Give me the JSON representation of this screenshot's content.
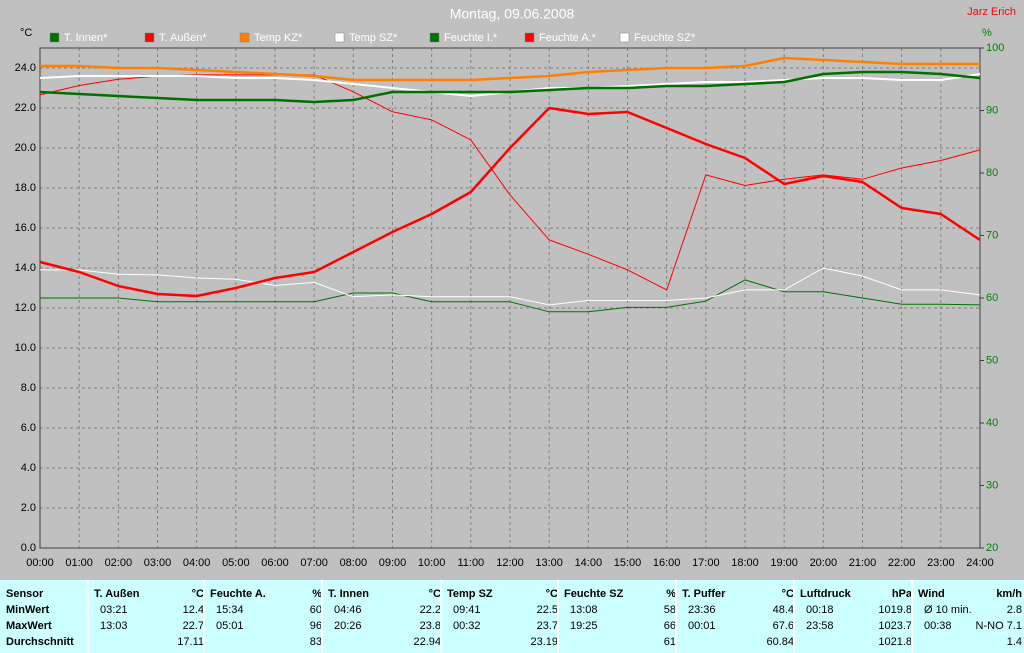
{
  "chart_data": {
    "type": "line",
    "title": "Montag, 09.06.2008",
    "annotation": "Jarz Erich",
    "y_label": "°C",
    "y2_label": "%",
    "categories": [
      "00:00",
      "01:00",
      "02:00",
      "03:00",
      "04:00",
      "05:00",
      "06:00",
      "07:00",
      "08:00",
      "09:00",
      "10:00",
      "11:00",
      "12:00",
      "13:00",
      "14:00",
      "15:00",
      "16:00",
      "17:00",
      "18:00",
      "19:00",
      "20:00",
      "21:00",
      "22:00",
      "23:00",
      "24:00"
    ],
    "ylim": [
      0,
      25
    ],
    "yticks": [
      {
        "value": 0,
        "label": "0.0"
      },
      {
        "value": 2,
        "label": "2.0"
      },
      {
        "value": 4,
        "label": "4.0"
      },
      {
        "value": 6,
        "label": "6.0"
      },
      {
        "value": 8,
        "label": "8.0"
      },
      {
        "value": 10,
        "label": "10.0"
      },
      {
        "value": 12,
        "label": "12.0"
      },
      {
        "value": 14,
        "label": "14.0"
      },
      {
        "value": 16,
        "label": "16.0"
      },
      {
        "value": 18,
        "label": "18.0"
      },
      {
        "value": 20,
        "label": "20.0"
      },
      {
        "value": 22,
        "label": "22.0"
      },
      {
        "value": 24,
        "label": "24.0"
      }
    ],
    "y2lim": [
      20,
      100
    ],
    "y2ticks": [
      20,
      30,
      40,
      50,
      60,
      70,
      80,
      90,
      100
    ],
    "grid": true,
    "series": [
      {
        "name": "T. Innen*",
        "color": "#007000",
        "width": 2.5,
        "values": [
          22.8,
          22.7,
          22.6,
          22.5,
          22.4,
          22.4,
          22.4,
          22.3,
          22.4,
          22.8,
          22.8,
          22.8,
          22.8,
          22.9,
          23.0,
          23.0,
          23.1,
          23.1,
          23.2,
          23.3,
          23.7,
          23.8,
          23.8,
          23.7,
          23.5
        ]
      },
      {
        "name": "T. Außen*",
        "color": "#ff0000",
        "width": 2.5,
        "values": [
          14.3,
          13.8,
          13.1,
          12.7,
          12.6,
          13.0,
          13.5,
          13.8,
          14.8,
          15.8,
          16.7,
          17.8,
          20.0,
          22.0,
          21.7,
          21.8,
          21.0,
          20.2,
          19.5,
          18.2,
          18.6,
          18.3,
          17.0,
          16.7,
          15.4
        ]
      },
      {
        "name": "Temp KZ*",
        "color": "#ff8000",
        "width": 2.5,
        "values": [
          24.1,
          24.1,
          24.0,
          24.0,
          23.9,
          23.8,
          23.7,
          23.6,
          23.4,
          23.4,
          23.4,
          23.4,
          23.5,
          23.6,
          23.8,
          23.9,
          24.0,
          24.0,
          24.1,
          24.5,
          24.4,
          24.3,
          24.2,
          24.2,
          24.2
        ]
      },
      {
        "name": "Temp SZ*",
        "color": "#ffffff",
        "width": 2,
        "values": [
          23.5,
          23.6,
          23.6,
          23.6,
          23.6,
          23.5,
          23.5,
          23.4,
          23.2,
          23.0,
          22.8,
          22.6,
          22.8,
          23.0,
          23.0,
          23.1,
          23.2,
          23.3,
          23.3,
          23.4,
          23.5,
          23.5,
          23.4,
          23.4,
          23.7
        ]
      },
      {
        "name": "Feuchte I.*",
        "color": "#007000",
        "width": 1,
        "axis": "y2",
        "values": [
          60,
          60,
          60,
          59.4,
          59.4,
          59.4,
          59.4,
          59.4,
          60.8,
          60.8,
          59.4,
          59.4,
          59.4,
          57.8,
          57.8,
          58.5,
          58.5,
          59.5,
          62.9,
          61,
          61,
          60,
          59,
          59,
          58.9
        ]
      },
      {
        "name": "Feuchte A.*",
        "color": "#ff0000",
        "width": 1,
        "axis": "y2",
        "values": [
          92.5,
          94,
          95,
          95.5,
          95.7,
          95.7,
          95.7,
          95.7,
          93,
          89.8,
          88.5,
          85.3,
          76.5,
          69.3,
          67,
          64.5,
          61.3,
          79.7,
          78,
          79,
          79.7,
          79,
          80.8,
          82,
          83.7
        ]
      },
      {
        "name": "Feuchte SZ*",
        "color": "#ffffff",
        "width": 1,
        "axis": "y2",
        "values": [
          64.5,
          64.5,
          63.8,
          63.7,
          63.2,
          63,
          62,
          62.5,
          60.2,
          60.5,
          60.2,
          60.2,
          60.2,
          58.9,
          59.6,
          59.6,
          59.6,
          60,
          61.3,
          61.3,
          64.8,
          63.5,
          61.3,
          61.3,
          60.5
        ]
      }
    ]
  },
  "table": {
    "row_labels": [
      "Sensor",
      "MinWert",
      "MaxWert",
      "Durchschnitt"
    ],
    "groups": [
      {
        "name": "T. Außen",
        "unit": "°C",
        "rows": [
          {
            "time": "03:21",
            "value": 12.4
          },
          {
            "time": "13:03",
            "value": 22.7
          },
          {
            "value": 17.11
          }
        ]
      },
      {
        "name": "Feuchte A.",
        "unit": "%",
        "rows": [
          {
            "time": "15:34",
            "value": 60
          },
          {
            "time": "05:01",
            "value": 96
          },
          {
            "value": 83
          }
        ]
      },
      {
        "name": "T. Innen",
        "unit": "°C",
        "rows": [
          {
            "time": "04:46",
            "value": 22.2
          },
          {
            "time": "20:26",
            "value": 23.8
          },
          {
            "value": 22.94
          }
        ]
      },
      {
        "name": "Temp SZ",
        "unit": "°C",
        "rows": [
          {
            "time": "09:41",
            "value": 22.5
          },
          {
            "time": "00:32",
            "value": 23.7
          },
          {
            "value": 23.19
          }
        ]
      },
      {
        "name": "Feuchte SZ",
        "unit": "%",
        "rows": [
          {
            "time": "13:08",
            "value": 58
          },
          {
            "time": "19:25",
            "value": 66
          },
          {
            "value": 61
          }
        ]
      },
      {
        "name": "T. Puffer",
        "unit": "°C",
        "rows": [
          {
            "time": "23:36",
            "value": 48.4
          },
          {
            "time": "00:01",
            "value": 67.6
          },
          {
            "value": 60.84
          }
        ]
      },
      {
        "name": "Luftdruck",
        "unit": "hPa",
        "rows": [
          {
            "time": "00:18",
            "value": 1019.8
          },
          {
            "time": "23:58",
            "value": 1023.7
          },
          {
            "value": 1021.8
          }
        ]
      },
      {
        "name": "Wind",
        "unit": "km/h",
        "rows": [
          {
            "time": "Ø 10 min.",
            "value": 2.8
          },
          {
            "time": "00:38",
            "value": "N-NO 7.1"
          },
          {
            "value": 1.4
          }
        ]
      }
    ]
  }
}
